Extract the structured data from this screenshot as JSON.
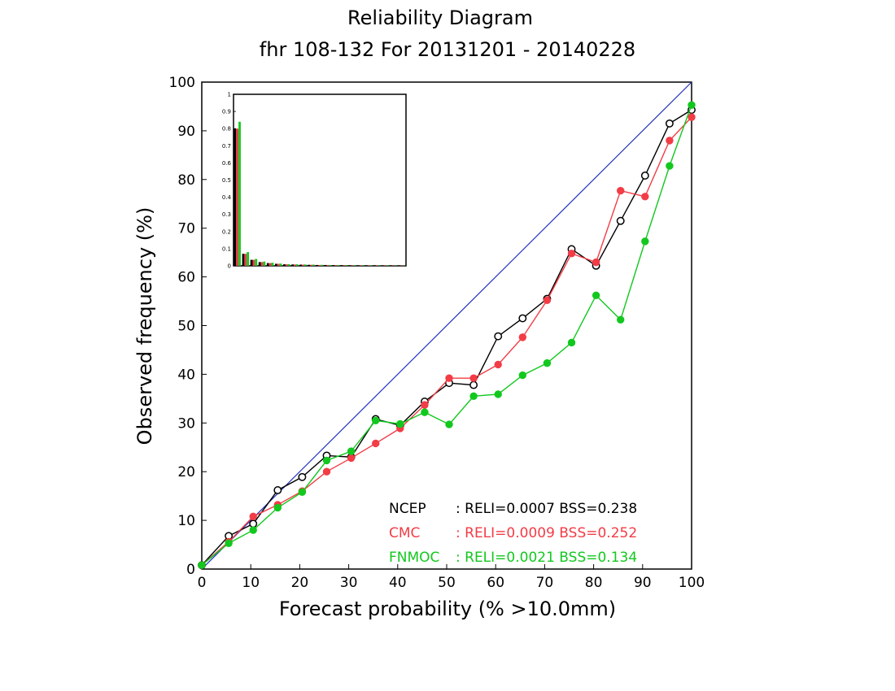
{
  "chart_data": {
    "type": "line",
    "title": "Reliability Diagram",
    "subtitle": "fhr 108-132 For 20131201 - 20140228",
    "xlabel": "Forecast probability (% >10.0mm)",
    "ylabel": "Observed frequency (%)",
    "xlim": [
      0,
      100
    ],
    "ylim": [
      0,
      100
    ],
    "x_ticks": [
      "0",
      "10",
      "20",
      "30",
      "40",
      "50",
      "60",
      "70",
      "80",
      "90",
      "100"
    ],
    "y_ticks": [
      "0",
      "10",
      "20",
      "30",
      "40",
      "50",
      "60",
      "70",
      "80",
      "90",
      "100"
    ],
    "diagonal_color": "#1f2fbf",
    "series": [
      {
        "name": "NCEP",
        "color": "#000000",
        "marker": "open-circle",
        "stats_text": ": RELI=0.0007  BSS=0.238",
        "x": [
          0,
          5.5,
          10.5,
          15.5,
          20.5,
          25.5,
          30.5,
          35.5,
          40.5,
          45.5,
          50.5,
          55.5,
          60.5,
          65.5,
          70.5,
          75.5,
          80.5,
          85.5,
          90.5,
          95.5,
          100
        ],
        "y": [
          0.8,
          6.8,
          9.3,
          16.2,
          18.9,
          23.3,
          23.0,
          30.8,
          29.5,
          34.4,
          38.2,
          37.8,
          47.8,
          51.5,
          55.5,
          65.7,
          62.3,
          71.5,
          80.8,
          91.5,
          94.3
        ]
      },
      {
        "name": "CMC",
        "color": "#f23c46",
        "marker": "filled-circle",
        "stats_text": ": RELI=0.0009  BSS=0.252",
        "x": [
          0,
          5.5,
          10.5,
          15.5,
          20.5,
          25.5,
          30.5,
          35.5,
          40.5,
          45.5,
          50.5,
          55.5,
          60.5,
          65.5,
          70.5,
          75.5,
          80.5,
          85.5,
          90.5,
          95.5,
          100
        ],
        "y": [
          0.8,
          5.6,
          10.8,
          13.2,
          16.0,
          20.0,
          22.8,
          25.8,
          28.9,
          33.7,
          39.2,
          39.2,
          42.0,
          47.6,
          55.2,
          64.8,
          63.0,
          77.7,
          76.5,
          88.0,
          92.8
        ]
      },
      {
        "name": "FNMOC",
        "color": "#12c81e",
        "marker": "filled-circle",
        "stats_text": ": RELI=0.0021  BSS=0.134",
        "x": [
          0,
          5.5,
          10.5,
          15.5,
          20.5,
          25.5,
          30.5,
          35.5,
          40.5,
          45.5,
          50.5,
          55.5,
          60.5,
          65.5,
          70.5,
          75.5,
          80.5,
          85.5,
          90.5,
          95.5,
          100
        ],
        "y": [
          0.8,
          5.3,
          8.0,
          12.6,
          15.8,
          22.3,
          24.2,
          30.5,
          29.8,
          32.2,
          29.7,
          35.5,
          35.9,
          39.8,
          42.3,
          46.5,
          56.2,
          51.2,
          67.3,
          82.8,
          95.3
        ]
      }
    ],
    "inset_histogram": {
      "type": "bar",
      "ylim": [
        0,
        1
      ],
      "y_ticks": [
        "0",
        "0.1",
        "0.2",
        "0.3",
        "0.4",
        "0.5",
        "0.6",
        "0.7",
        "0.8",
        "0.9",
        "1"
      ],
      "bins": 21,
      "series": [
        {
          "name": "NCEP",
          "color": "#000000",
          "values": [
            0.8,
            0.07,
            0.035,
            0.022,
            0.016,
            0.012,
            0.009,
            0.008,
            0.007,
            0.006,
            0.005,
            0.005,
            0.004,
            0.004,
            0.003,
            0.003,
            0.003,
            0.003,
            0.002,
            0.002,
            0.002
          ]
        },
        {
          "name": "CMC",
          "color": "#f23c46",
          "values": [
            0.8,
            0.07,
            0.035,
            0.022,
            0.016,
            0.012,
            0.009,
            0.008,
            0.007,
            0.006,
            0.005,
            0.005,
            0.004,
            0.004,
            0.003,
            0.003,
            0.003,
            0.003,
            0.002,
            0.002,
            0.002
          ]
        },
        {
          "name": "FNMOC",
          "color": "#12c81e",
          "values": [
            0.84,
            0.08,
            0.04,
            0.025,
            0.018,
            0.013,
            0.01,
            0.009,
            0.008,
            0.007,
            0.006,
            0.005,
            0.005,
            0.004,
            0.004,
            0.003,
            0.003,
            0.003,
            0.003,
            0.002,
            0.002
          ]
        }
      ]
    }
  }
}
